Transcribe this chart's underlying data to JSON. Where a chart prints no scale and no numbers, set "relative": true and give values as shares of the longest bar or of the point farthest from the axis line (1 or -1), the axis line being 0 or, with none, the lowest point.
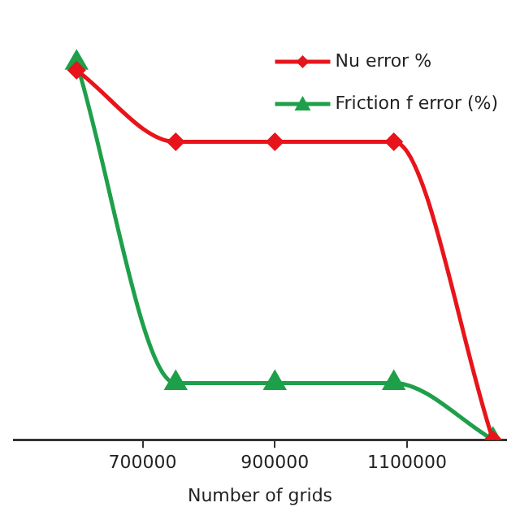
{
  "chart_data": {
    "type": "line",
    "xlabel": "Number of grids",
    "relative": true,
    "x": [
      600000,
      750000,
      900000,
      1080000,
      1230000
    ],
    "xlim": [
      505000,
      1250000
    ],
    "xticks": [
      700000,
      900000,
      1100000
    ],
    "series": [
      {
        "name": "Nu error %",
        "color": "#e8141b",
        "marker": "diamond",
        "values": [
          0.98,
          0.79,
          0.79,
          0.79,
          0
        ]
      },
      {
        "name": "Friction f error (%)",
        "color": "#1ea04a",
        "marker": "triangle",
        "values": [
          1,
          0.15,
          0.15,
          0.15,
          0
        ]
      }
    ],
    "legend": "top right",
    "grid": false
  }
}
